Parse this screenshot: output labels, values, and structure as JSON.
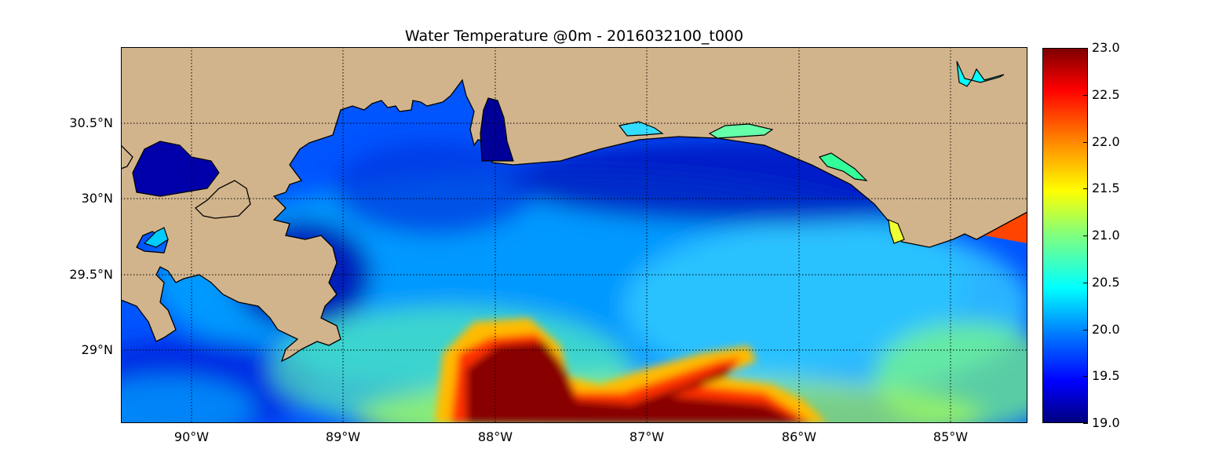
{
  "title": "Water Temperature @0m - 2016032100_t000",
  "map": {
    "land_color": "#d2b48c",
    "ocean_colormap": "jet",
    "grid": "dotted",
    "lat_ticks": [
      "30.5°N",
      "30°N",
      "29.5°N",
      "29°N"
    ],
    "lon_ticks": [
      "90°W",
      "89°W",
      "88°W",
      "87°W",
      "86°W",
      "85°W"
    ]
  },
  "colorbar": {
    "min": 19.0,
    "max": 23.0,
    "ticks": [
      "23.0",
      "22.5",
      "22.0",
      "21.5",
      "21.0",
      "20.5",
      "20.0",
      "19.5",
      "19.0"
    ]
  }
}
